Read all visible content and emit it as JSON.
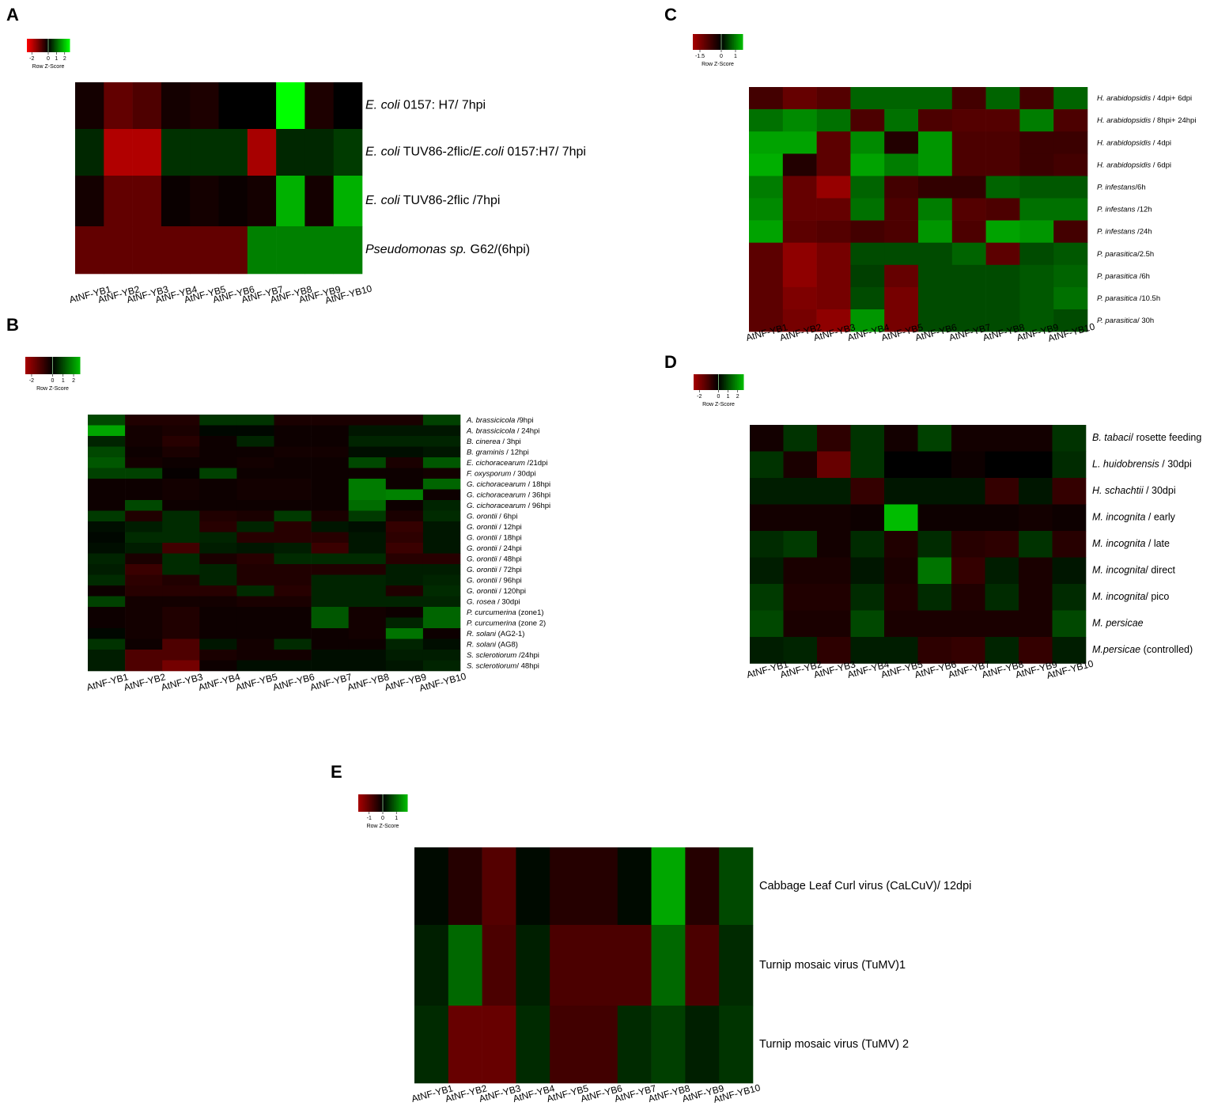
{
  "chart_data": [
    {
      "panel": "A",
      "type": "heatmap",
      "legend": {
        "title": "Row Z-Score",
        "ticks": [
          "-2",
          "0",
          "1",
          "2"
        ]
      },
      "columns": [
        "AtNF-YB1",
        "AtNF-YB2",
        "AtNF-YB3",
        "AtNF-YB4",
        "AtNF-YB5",
        "AtNF-YB6",
        "AtNF-YB7",
        "AtNF-YB8",
        "AtNF-YB9",
        "AtNF-YB10"
      ],
      "rows": [
        {
          "label": "E. coli 0157: H7/ 7hpi",
          "values": [
            -0.2,
            -1.0,
            -0.8,
            -0.2,
            -0.3,
            0,
            0,
            2.8,
            -0.3,
            0
          ]
        },
        {
          "label": "E. coli TUV86-2flic/E.coli 0157:H7/ 7hpi",
          "values": [
            0.4,
            -1.8,
            -1.8,
            0.5,
            0.5,
            0.5,
            -1.7,
            0.4,
            0.4,
            0.6
          ]
        },
        {
          "label": "E. coli TUV86-2flic /7hpi",
          "values": [
            -0.2,
            -1.0,
            -1.0,
            -0.1,
            -0.2,
            -0.1,
            -0.2,
            1.8,
            -0.2,
            1.8
          ]
        },
        {
          "label": "Pseudomonas sp. G62/(6hpi)",
          "values": [
            -1.0,
            -1.0,
            -1.0,
            -1.0,
            -1.0,
            -1.0,
            1.3,
            1.3,
            1.3,
            1.3
          ]
        }
      ]
    },
    {
      "panel": "B",
      "type": "heatmap",
      "legend": {
        "title": "Row Z-Score",
        "ticks": [
          "-2",
          "0",
          "1",
          "2"
        ]
      },
      "columns": [
        "AtNF-YB1",
        "AtNF-YB2",
        "AtNF-YB3",
        "AtNF-YB4",
        "AtNF-YB5",
        "AtNF-YB6",
        "AtNF-YB7",
        "AtNF-YB8",
        "AtNF-YB9",
        "AtNF-YB10"
      ],
      "rows": [
        {
          "label": "A. brassicicola /9hpi",
          "values": [
            1.0,
            -0.5,
            -0.5,
            0.7,
            0.7,
            -0.4,
            -0.4,
            -0.4,
            -0.4,
            0.9
          ]
        },
        {
          "label": "A. brassicicola / 24hpi",
          "values": [
            2.3,
            -0.3,
            -0.4,
            0.1,
            0.1,
            -0.2,
            -0.2,
            0.3,
            0.3,
            0.3
          ]
        },
        {
          "label": "B. cinerea / 3hpi",
          "values": [
            0.5,
            -0.3,
            -0.6,
            -0.2,
            0.5,
            -0.2,
            -0.2,
            0.5,
            0.5,
            0.5
          ]
        },
        {
          "label": "B. graminis / 12hpi",
          "values": [
            1.0,
            -0.2,
            -0.4,
            -0.2,
            -0.2,
            -0.3,
            -0.3,
            0.2,
            0.2,
            0.3
          ]
        },
        {
          "label": "E. cichoracearum /21dpi",
          "values": [
            1.2,
            -0.3,
            -0.2,
            -0.2,
            -0.3,
            -0.2,
            -0.2,
            1.0,
            -0.4,
            1.2
          ]
        },
        {
          "label": "F. oxysporum / 30dpi",
          "values": [
            0.9,
            0.9,
            -0.1,
            0.9,
            -0.2,
            -0.2,
            -0.2,
            -0.2,
            -0.2,
            -0.3
          ]
        },
        {
          "label": "G. cichoracearum / 18hpi",
          "values": [
            -0.2,
            -0.2,
            -0.3,
            -0.2,
            -0.3,
            -0.3,
            -0.2,
            1.7,
            -0.2,
            1.4
          ]
        },
        {
          "label": "G. cichoracearum / 36hpi",
          "values": [
            -0.2,
            -0.2,
            -0.3,
            -0.2,
            -0.3,
            -0.3,
            -0.2,
            1.7,
            1.8,
            -0.2
          ]
        },
        {
          "label": "G. cichoracearum / 96hpi",
          "values": [
            -0.2,
            1.0,
            -0.2,
            -0.2,
            -0.2,
            -0.2,
            -0.2,
            1.5,
            -0.2,
            0.5
          ]
        },
        {
          "label": "G. orontii / 6hpi",
          "values": [
            0.8,
            -0.5,
            0.6,
            -0.5,
            -0.4,
            0.8,
            -0.4,
            0.8,
            -0.4,
            0.6
          ]
        },
        {
          "label": "G. orontii / 12hpi",
          "values": [
            0.2,
            0.4,
            0.6,
            -0.6,
            0.5,
            -0.6,
            0.3,
            0.2,
            -0.8,
            0.3
          ]
        },
        {
          "label": "G. orontii / 18hpi",
          "values": [
            0.1,
            0.6,
            0.6,
            0.5,
            -0.6,
            -0.6,
            -0.6,
            0.3,
            -0.7,
            0.3
          ]
        },
        {
          "label": "G. orontii / 24hpi",
          "values": [
            0.2,
            0.4,
            -1.0,
            0.4,
            0.3,
            0.4,
            -0.9,
            0.3,
            -0.9,
            0.3
          ]
        },
        {
          "label": "G. orontii / 48hpi",
          "values": [
            0.5,
            -0.4,
            0.6,
            -0.4,
            -0.6,
            0.6,
            0.6,
            0.6,
            -0.6,
            -0.6
          ]
        },
        {
          "label": "G. orontii / 72hpi",
          "values": [
            0.4,
            -0.9,
            0.6,
            0.5,
            -0.5,
            -0.5,
            -0.5,
            -0.5,
            0.4,
            0.4
          ]
        },
        {
          "label": "G. orontii / 96hpi",
          "values": [
            0.6,
            -0.7,
            -0.5,
            0.5,
            -0.5,
            -0.5,
            0.5,
            0.5,
            0.4,
            0.5
          ]
        },
        {
          "label": "G. orontii / 120hpi",
          "values": [
            -0.2,
            -0.6,
            -0.6,
            -0.6,
            0.6,
            -0.6,
            0.5,
            0.5,
            -0.5,
            0.6
          ]
        },
        {
          "label": "G. rosea / 30dpi",
          "values": [
            0.9,
            -0.3,
            -0.3,
            -0.3,
            -0.4,
            -0.4,
            0.5,
            0.5,
            0.5,
            0.5
          ]
        },
        {
          "label": "P. curcumerina (zone1)",
          "values": [
            -0.2,
            -0.3,
            -0.5,
            -0.2,
            -0.2,
            -0.2,
            1.2,
            -0.3,
            -0.2,
            1.4
          ]
        },
        {
          "label": "P. curcumerina (zone 2)",
          "values": [
            -0.2,
            -0.3,
            -0.5,
            -0.2,
            -0.2,
            -0.2,
            1.2,
            -0.3,
            0.5,
            1.4
          ]
        },
        {
          "label": "R. solani (AG2-1)",
          "values": [
            0.1,
            -0.3,
            -0.5,
            -0.2,
            -0.2,
            -0.2,
            -0.2,
            -0.3,
            1.6,
            -0.2
          ]
        },
        {
          "label": "R. solani (AG8)",
          "values": [
            0.7,
            -0.2,
            -1.2,
            0.3,
            -0.3,
            0.6,
            -0.2,
            -0.2,
            0.5,
            0.2
          ]
        },
        {
          "label": "S. sclerotiorum /24hpi",
          "values": [
            0.4,
            -1.2,
            -1.2,
            -0.4,
            -0.3,
            -0.3,
            0.2,
            0.2,
            0.4,
            0.4
          ]
        },
        {
          "label": "S. sclerotiorum/ 48hpi",
          "values": [
            0.4,
            -1.2,
            -1.8,
            -0.2,
            0.2,
            0.2,
            0.2,
            0.2,
            0.3,
            0.5
          ]
        }
      ]
    },
    {
      "panel": "C",
      "type": "heatmap",
      "legend": {
        "title": "Row Z-Score",
        "ticks": [
          "-1.5",
          "0",
          "1"
        ]
      },
      "columns": [
        "AtNF-YB1",
        "AtNF-YB2",
        "AtNF-YB3",
        "AtNF-YB4",
        "AtNF-YB5",
        "AtNF-YB6",
        "AtNF-YB7",
        "AtNF-YB8",
        "AtNF-YB9",
        "AtNF-YB10"
      ],
      "rows": [
        {
          "label": "H. arabidopsidis / 4dpi+ 6dpi",
          "values": [
            -0.8,
            -1.2,
            -1.0,
            0.8,
            0.8,
            0.8,
            -0.8,
            0.8,
            -0.8,
            0.8
          ]
        },
        {
          "label": "H. arabidopsidis / 8hpi+ 24hpi",
          "values": [
            0.9,
            1.1,
            0.9,
            -0.9,
            0.9,
            -0.9,
            -1.0,
            -1.0,
            1.0,
            -0.9
          ]
        },
        {
          "label": "H. arabidopsidis / 4dpi",
          "values": [
            1.3,
            1.3,
            -1.1,
            1.1,
            -0.4,
            1.2,
            -0.9,
            -0.9,
            -0.7,
            -0.7
          ]
        },
        {
          "label": "H. arabidopsidis / 6dpi",
          "values": [
            1.4,
            -0.4,
            -1.1,
            1.3,
            1.0,
            1.2,
            -0.9,
            -0.9,
            -0.7,
            -0.8
          ]
        },
        {
          "label": "P. infestans/6h",
          "values": [
            1.0,
            -1.2,
            -1.8,
            0.8,
            -0.8,
            -0.6,
            -0.6,
            0.8,
            0.7,
            0.7
          ]
        },
        {
          "label": "P. infestans /12h",
          "values": [
            1.1,
            -1.2,
            -1.2,
            0.9,
            -0.9,
            1.0,
            -1.0,
            -0.9,
            0.9,
            0.9
          ]
        },
        {
          "label": "P. infestans /24h",
          "values": [
            1.3,
            -1.1,
            -1.0,
            -0.8,
            -0.9,
            1.2,
            -0.9,
            1.3,
            1.2,
            -0.8
          ]
        },
        {
          "label": "P. parasitica/2.5h",
          "values": [
            -1.1,
            -1.7,
            -1.4,
            0.6,
            0.6,
            0.6,
            0.8,
            -1.1,
            0.6,
            0.7
          ]
        },
        {
          "label": "P. parasitica /6h",
          "values": [
            -1.1,
            -1.7,
            -1.4,
            0.5,
            -1.2,
            0.6,
            0.6,
            0.6,
            0.7,
            0.8
          ]
        },
        {
          "label": "P. parasitica /10.5h",
          "values": [
            -1.1,
            -1.5,
            -1.4,
            0.6,
            -1.4,
            0.6,
            0.6,
            0.6,
            0.7,
            0.9
          ]
        },
        {
          "label": "P. parasitica/ 30h",
          "values": [
            -1.1,
            -1.4,
            -1.7,
            1.2,
            -1.4,
            0.6,
            0.6,
            0.6,
            0.7,
            0.6
          ]
        }
      ]
    },
    {
      "panel": "D",
      "type": "heatmap",
      "legend": {
        "title": "Row Z-Score",
        "ticks": [
          "-2",
          "0",
          "1",
          "2"
        ]
      },
      "columns": [
        "AtNF-YB1",
        "AtNF-YB2",
        "AtNF-YB3",
        "AtNF-YB4",
        "AtNF-YB5",
        "AtNF-YB6",
        "AtNF-YB7",
        "AtNF-YB8",
        "AtNF-YB9",
        "AtNF-YB10"
      ],
      "rows": [
        {
          "label": "B. tabaci/ rosette feeding",
          "values": [
            -0.3,
            0.7,
            -0.7,
            0.7,
            -0.3,
            0.9,
            -0.3,
            -0.3,
            -0.3,
            0.7
          ]
        },
        {
          "label": "L. huidobrensis / 30dpi",
          "values": [
            0.7,
            -0.4,
            -1.6,
            0.7,
            0,
            0,
            -0.2,
            0,
            0,
            0.6
          ]
        },
        {
          "label": "H. schachtii / 30dpi",
          "values": [
            0.4,
            0.4,
            0.4,
            -0.8,
            0.3,
            0.3,
            0.3,
            -0.8,
            0.3,
            -0.8
          ]
        },
        {
          "label": "M. incognita / early",
          "values": [
            -0.3,
            -0.3,
            -0.3,
            -0.2,
            2.6,
            -0.2,
            -0.2,
            -0.2,
            -0.3,
            -0.2
          ]
        },
        {
          "label": "M. incognita / late",
          "values": [
            0.6,
            0.8,
            -0.3,
            0.6,
            -0.5,
            0.6,
            -0.6,
            -0.7,
            0.7,
            -0.6
          ]
        },
        {
          "label": "M. incognita/ direct",
          "values": [
            0.4,
            -0.4,
            -0.4,
            0.3,
            -0.4,
            1.6,
            -0.8,
            0.4,
            -0.4,
            0.3
          ]
        },
        {
          "label": "M. incognita/ pico",
          "values": [
            0.8,
            -0.5,
            -0.5,
            0.6,
            -0.5,
            0.6,
            -0.5,
            0.6,
            -0.4,
            0.6
          ]
        },
        {
          "label": "M. persicae",
          "values": [
            1.0,
            -0.4,
            -0.4,
            1.0,
            -0.4,
            -0.4,
            -0.4,
            -0.4,
            -0.4,
            1.0
          ]
        },
        {
          "label": "M.persicae (controlled)",
          "values": [
            0.4,
            0.5,
            -0.7,
            0.4,
            0.4,
            -0.7,
            -0.8,
            0.5,
            -0.8,
            0.4
          ]
        }
      ]
    },
    {
      "panel": "E",
      "type": "heatmap",
      "legend": {
        "title": "Row Z-Score",
        "ticks": [
          "-1",
          "0",
          "1"
        ]
      },
      "columns": [
        "AtNF-YB1",
        "AtNF-YB2",
        "AtNF-YB3",
        "AtNF-YB4",
        "AtNF-YB5",
        "AtNF-YB6",
        "AtNF-YB7",
        "AtNF-YB8",
        "AtNF-YB9",
        "AtNF-YB10"
      ],
      "rows": [
        {
          "label": "Cabbage Leaf Curl virus (CaLCuV)/ 12dpi",
          "values": [
            0.1,
            -0.4,
            -0.9,
            0.1,
            -0.4,
            -0.4,
            0.1,
            1.6,
            -0.4,
            0.7
          ]
        },
        {
          "label": "Turnip mosaic virus (TuMV)1",
          "values": [
            0.3,
            1.0,
            -0.8,
            0.3,
            -0.8,
            -0.8,
            -0.8,
            1.0,
            -0.8,
            0.4
          ]
        },
        {
          "label": "Turnip mosaic virus (TuMV) 2",
          "values": [
            0.4,
            -1.1,
            -1.1,
            0.4,
            -0.7,
            -0.7,
            0.4,
            0.6,
            0.3,
            0.5
          ]
        }
      ]
    }
  ]
}
